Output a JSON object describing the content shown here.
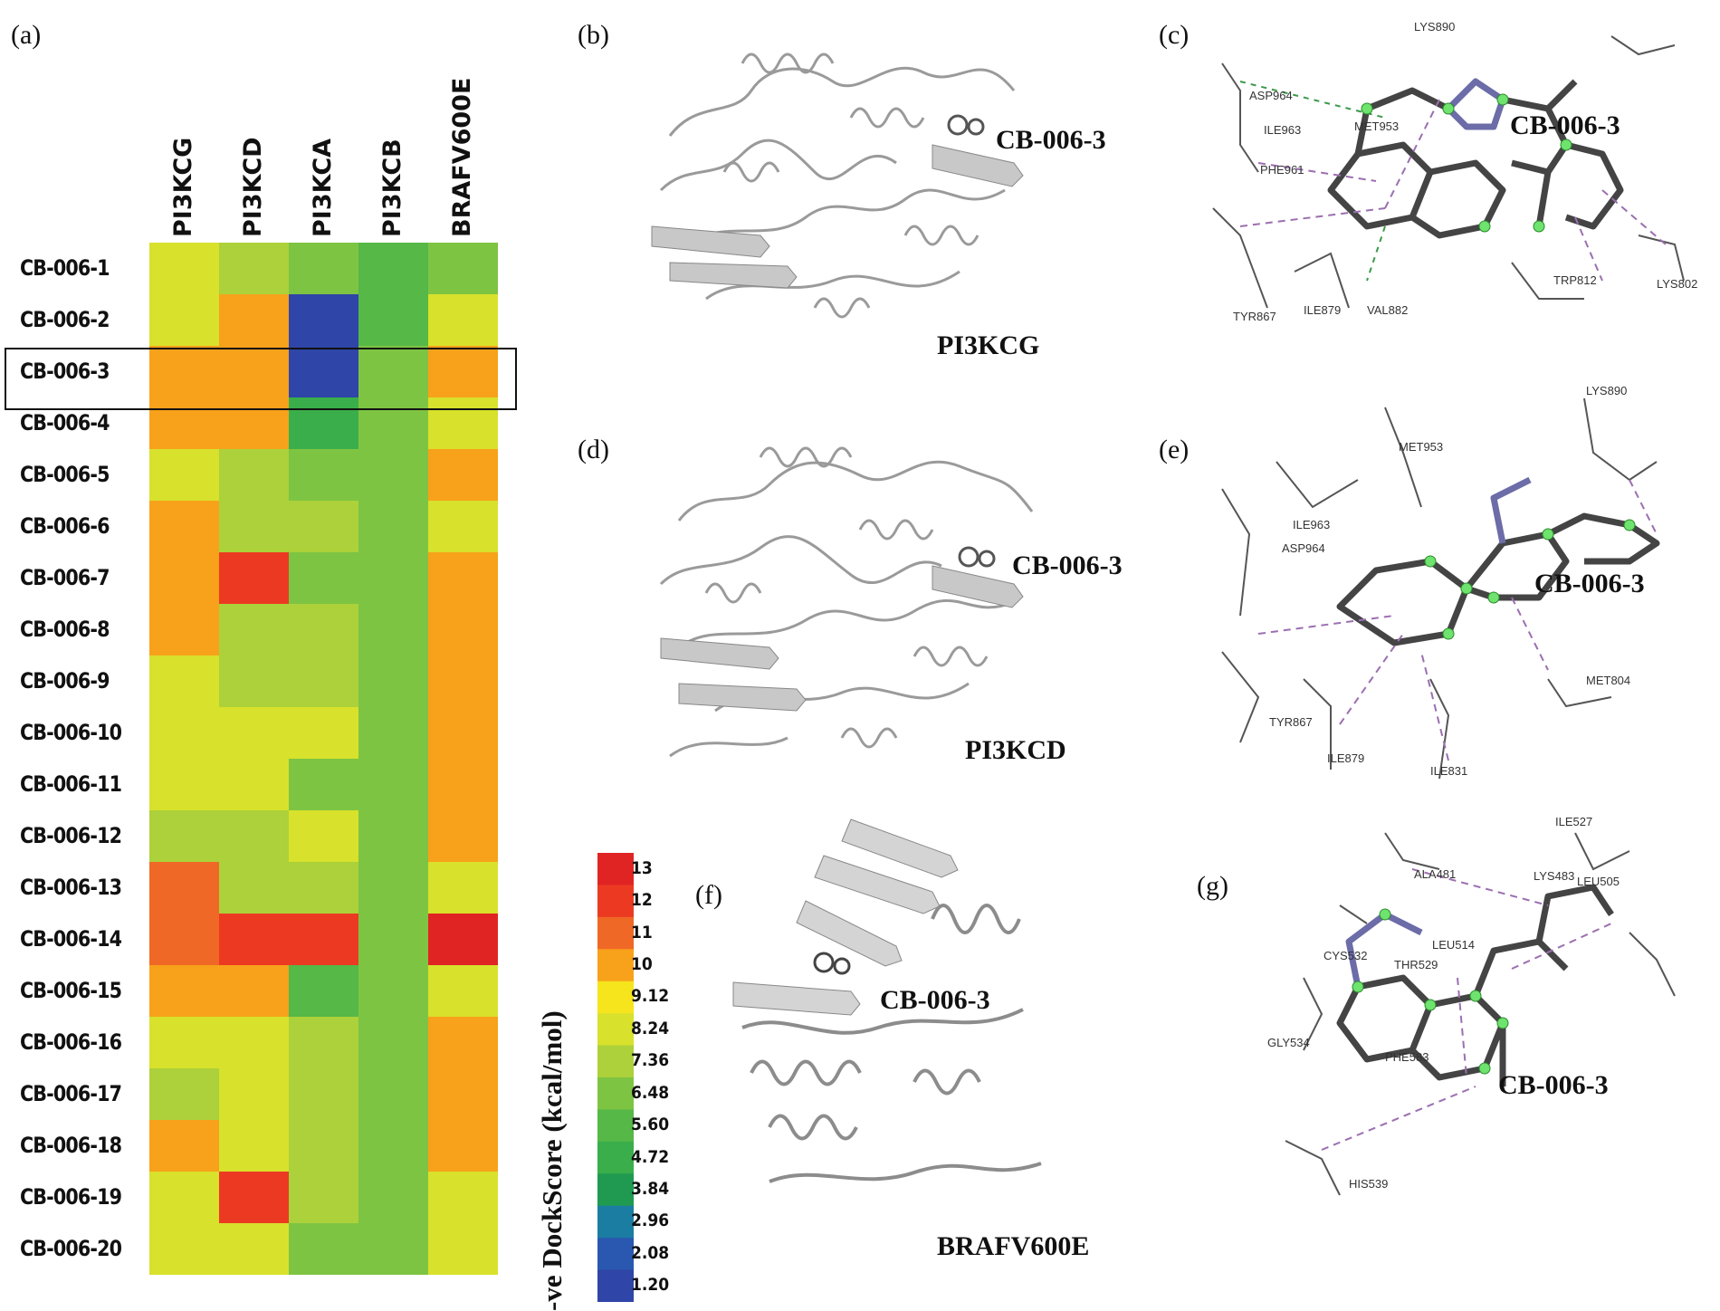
{
  "panel_labels": {
    "a": "(a)",
    "b": "(b)",
    "c": "(c)",
    "d": "(d)",
    "e": "(e)",
    "f": "(f)",
    "g": "(g)"
  },
  "chart_data": {
    "type": "heatmap",
    "title": "",
    "columns": [
      "PI3KCG",
      "PI3KCD",
      "PI3KCA",
      "PI3KCB",
      "BRAFV600E"
    ],
    "rows": [
      "CB-006-1",
      "CB-006-2",
      "CB-006-3",
      "CB-006-4",
      "CB-006-5",
      "CB-006-6",
      "CB-006-7",
      "CB-006-8",
      "CB-006-9",
      "CB-006-10",
      "CB-006-11",
      "CB-006-12",
      "CB-006-13",
      "CB-006-14",
      "CB-006-15",
      "CB-006-16",
      "CB-006-17",
      "CB-006-18",
      "CB-006-19",
      "CB-006-20"
    ],
    "values": [
      [
        8.5,
        7.4,
        6.2,
        5.2,
        6.6
      ],
      [
        8.5,
        10.0,
        1.6,
        5.2,
        8.5
      ],
      [
        10.0,
        10.0,
        1.6,
        6.2,
        10.0
      ],
      [
        10.0,
        10.0,
        4.5,
        6.2,
        8.5
      ],
      [
        8.5,
        7.4,
        6.2,
        6.2,
        10.0
      ],
      [
        10.0,
        7.4,
        7.4,
        6.2,
        8.5
      ],
      [
        10.0,
        12.0,
        6.2,
        6.2,
        10.0
      ],
      [
        10.0,
        7.4,
        7.4,
        6.2,
        10.0
      ],
      [
        8.5,
        7.4,
        7.4,
        6.2,
        10.0
      ],
      [
        8.5,
        8.5,
        8.5,
        6.2,
        10.0
      ],
      [
        8.5,
        8.5,
        6.8,
        6.2,
        10.0
      ],
      [
        7.4,
        7.4,
        8.5,
        6.2,
        10.0
      ],
      [
        11.0,
        7.4,
        7.4,
        6.2,
        8.5
      ],
      [
        11.0,
        12.0,
        12.0,
        6.2,
        13.0
      ],
      [
        10.0,
        10.0,
        5.6,
        6.2,
        8.5
      ],
      [
        8.5,
        8.5,
        7.4,
        6.2,
        10.0
      ],
      [
        7.4,
        8.5,
        7.4,
        6.2,
        10.0
      ],
      [
        10.0,
        8.5,
        7.4,
        6.2,
        10.0
      ],
      [
        8.5,
        12.0,
        7.4,
        6.2,
        8.5
      ],
      [
        8.5,
        8.5,
        6.2,
        6.2,
        8.5
      ]
    ],
    "highlighted_row": "CB-006-3",
    "colorbar": {
      "label": "-ve DockScore (kcal/mol)",
      "ticks": [
        "13",
        "12",
        "11",
        "10",
        "9.12",
        "8.24",
        "7.36",
        "6.48",
        "5.60",
        "4.72",
        "3.84",
        "2.96",
        "2.08",
        "1.20"
      ],
      "stops": [
        "#e02424",
        "#ec3a22",
        "#f06826",
        "#f7a21a",
        "#f6e41c",
        "#d8e12b",
        "#acd13a",
        "#7ec443",
        "#55b847",
        "#3aae4a",
        "#1f9a50",
        "#1c7da2",
        "#2a58b0",
        "#2f45a8"
      ]
    }
  },
  "images": {
    "b": {
      "label": "CB-006-3",
      "protein": "PI3KCG"
    },
    "d": {
      "label": "CB-006-3",
      "protein": "PI3KCD"
    },
    "f": {
      "label": "CB-006-3",
      "protein": "BRAFV600E"
    },
    "c": {
      "label": "CB-006-3",
      "residues": [
        "LYS890",
        "ASP964",
        "ILE963",
        "MET953",
        "PHE961",
        "TYR867",
        "ILE879",
        "VAL882",
        "TRP812",
        "LYS802"
      ]
    },
    "e": {
      "label": "CB-006-3",
      "residues": [
        "LYS890",
        "MET953",
        "ILE963",
        "ASP964",
        "TYR867",
        "MET804",
        "ILE879",
        "ILE831"
      ]
    },
    "g": {
      "label": "CB-006-3",
      "residues": [
        "ILE527",
        "ALA481",
        "LYS483",
        "LEU505",
        "CYS532",
        "LEU514",
        "THR529",
        "GLY534",
        "PHE583",
        "HIS539"
      ]
    }
  }
}
